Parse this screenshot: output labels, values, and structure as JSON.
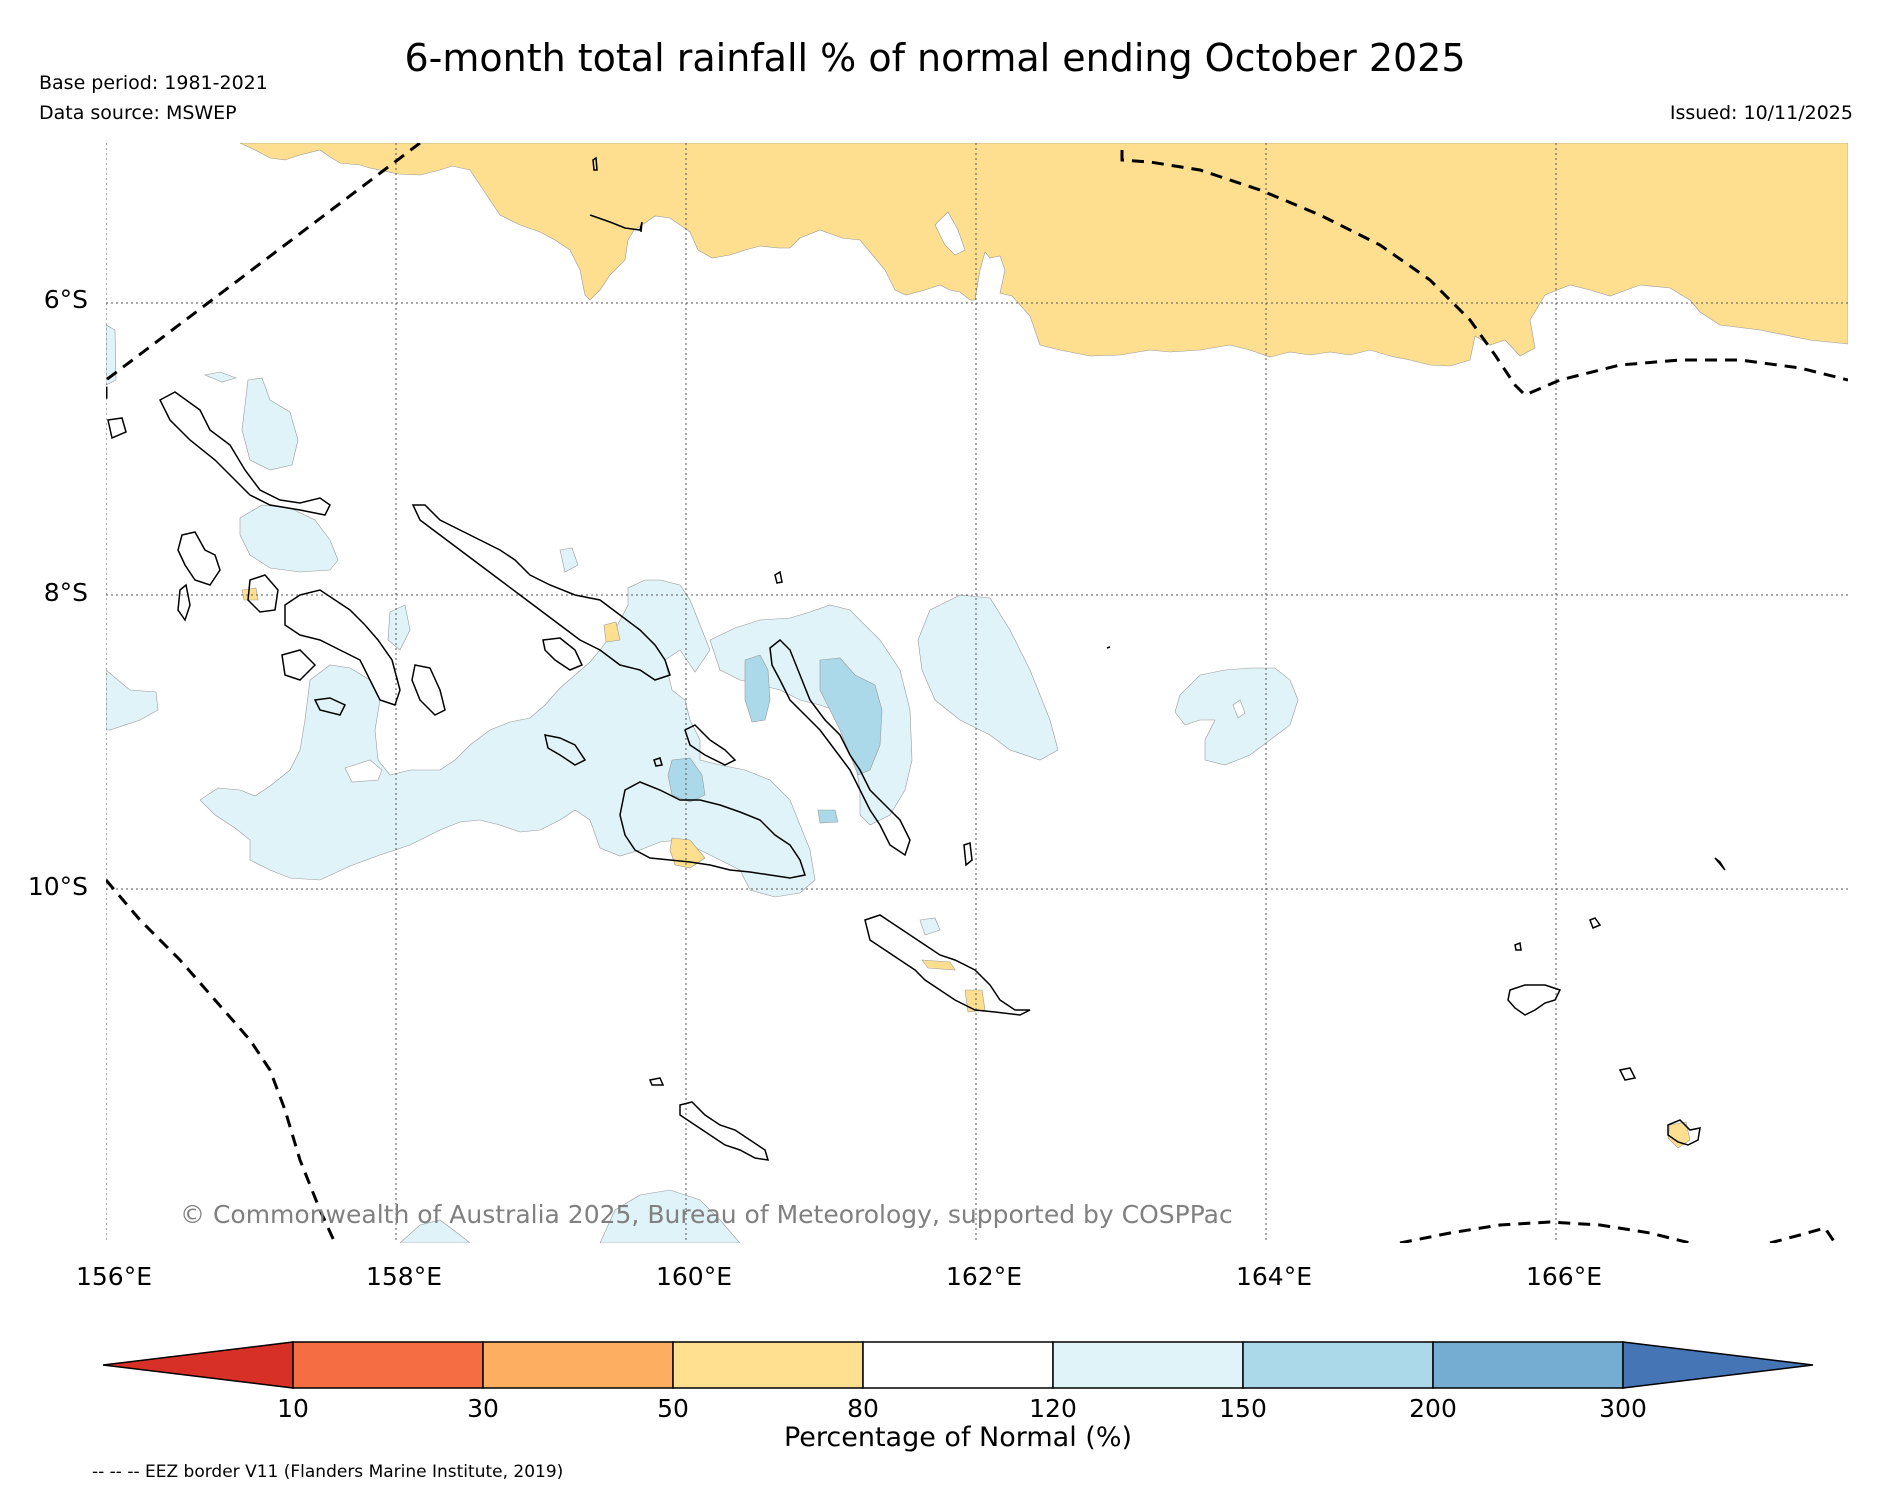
{
  "title": "6-month total rainfall % of normal ending October 2025",
  "meta": {
    "base_period": "Base period: 1981-2021",
    "data_source": "Data source: MSWEP",
    "issued": "Issued: 10/11/2025"
  },
  "axes": {
    "lat_labels": [
      "6°S",
      "8°S",
      "10°S"
    ],
    "lon_labels": [
      "156°E",
      "158°E",
      "160°E",
      "162°E",
      "164°E",
      "166°E"
    ]
  },
  "copyright": "© Commonwealth of Australia 2025, Bureau of Meteorology, supported by COSPPac",
  "colorbar": {
    "label": "Percentage of Normal (%)",
    "ticks": [
      "10",
      "30",
      "50",
      "80",
      "120",
      "150",
      "200",
      "300"
    ],
    "colors": [
      "#d73027",
      "#f46d43",
      "#fdae61",
      "#fee090",
      "#ffffff",
      "#e0f3f8",
      "#abd9e9",
      "#74add1",
      "#4575b4"
    ]
  },
  "legend_note": "-- -- -- EEZ border V11 (Flanders Marine Institute, 2019)",
  "map_colors": {
    "dry": "#fedf90",
    "wet_light": "#e0f3f8",
    "wet_mid": "#abd9e9"
  }
}
